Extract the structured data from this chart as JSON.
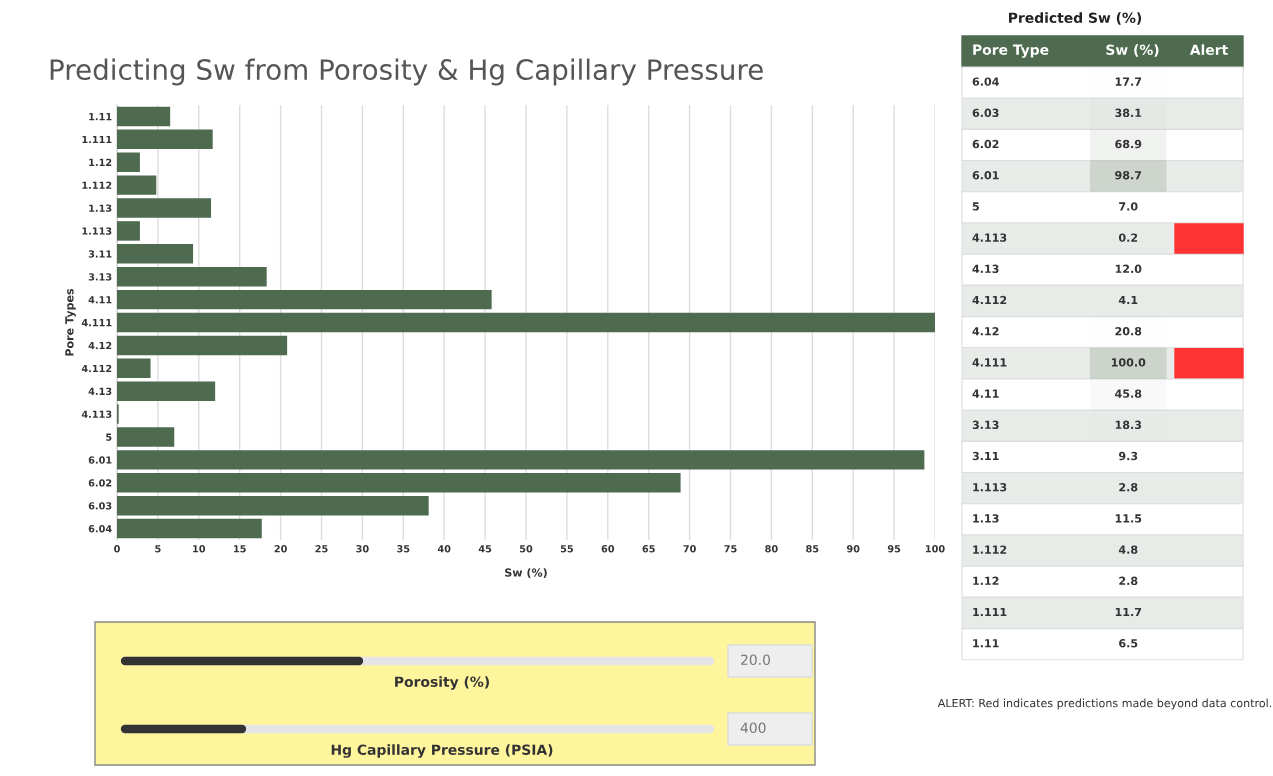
{
  "chart_data": [
    {
      "type": "bar",
      "orientation": "horizontal",
      "title": "Predicting Sw from Porosity & Hg Capillary Pressure",
      "xlabel": "Sw (%)",
      "ylabel": "Pore Types",
      "categories": [
        "1.11",
        "1.111",
        "1.12",
        "1.112",
        "1.13",
        "1.113",
        "3.11",
        "3.13",
        "4.11",
        "4.111",
        "4.12",
        "4.112",
        "4.13",
        "4.113",
        "5",
        "6.01",
        "6.02",
        "6.03",
        "6.04"
      ],
      "values": [
        6.5,
        11.7,
        2.8,
        4.8,
        11.5,
        2.8,
        9.3,
        18.3,
        45.8,
        100.0,
        20.8,
        4.1,
        12.0,
        0.2,
        7.0,
        98.7,
        68.9,
        38.1,
        17.7
      ],
      "color": "#4e6b50",
      "xlim": [
        0,
        100
      ],
      "xticks": [
        0,
        5,
        10,
        15,
        20,
        25,
        30,
        35,
        40,
        45,
        50,
        55,
        60,
        65,
        70,
        75,
        80,
        85,
        90,
        95,
        100
      ],
      "grid": "x"
    },
    {
      "type": "heatmap",
      "title": "Predicted Sw (%)",
      "categories": [
        "Sw (%)",
        "Alert"
      ],
      "y_categories": [
        "6.04",
        "6.03",
        "6.02",
        "6.01",
        "5",
        "4.113",
        "4.13",
        "4.112",
        "4.12",
        "4.111",
        "4.11",
        "3.13",
        "3.11",
        "1.113",
        "1.13",
        "1.112",
        "1.12",
        "1.111",
        "1.11"
      ],
      "cells": [
        [
          17.7,
          null
        ],
        [
          38.1,
          null
        ],
        [
          68.9,
          null
        ],
        [
          98.7,
          null
        ],
        [
          7.0,
          null
        ],
        [
          0.2,
          null
        ],
        [
          12.0,
          null
        ],
        [
          4.1,
          null
        ],
        [
          20.8,
          null
        ],
        [
          100.0,
          null
        ],
        [
          45.8,
          null
        ],
        [
          18.3,
          null
        ],
        [
          9.3,
          null
        ],
        [
          2.8,
          null
        ],
        [
          11.5,
          null
        ],
        [
          4.8,
          null
        ],
        [
          2.8,
          null
        ],
        [
          11.7,
          null
        ],
        [
          6.5,
          null
        ]
      ],
      "cell_labels": [
        [
          "17.7",
          null
        ],
        [
          "38.1",
          null
        ],
        [
          "68.9",
          null
        ],
        [
          "98.7",
          null
        ],
        [
          "7.0",
          null
        ],
        [
          "0.2",
          null
        ],
        [
          "12.0",
          null
        ],
        [
          "4.1",
          null
        ],
        [
          "20.8",
          null
        ],
        [
          "100.0",
          null
        ],
        [
          "45.8",
          null
        ],
        [
          "18.3",
          null
        ],
        [
          "9.3",
          null
        ],
        [
          "2.8",
          null
        ],
        [
          "11.5",
          null
        ],
        [
          "4.8",
          null
        ],
        [
          "2.8",
          null
        ],
        [
          "11.7",
          null
        ],
        [
          "6.5",
          null
        ]
      ],
      "colors": [
        null,
        null,
        null,
        null,
        null,
        "#ff3333",
        null,
        null,
        null,
        "#ff3333",
        null,
        null,
        null,
        null,
        null,
        null,
        null,
        null,
        null
      ],
      "color": "#4e6b50",
      "annotations": [
        "Pore Type",
        "ALERT: Red indicates predictions made beyond data control."
      ]
    },
    {
      "type": "other",
      "categories": [
        "Porosity (%)",
        "Hg Capillary Pressure (PSIA)"
      ],
      "values": [
        20.0,
        400
      ],
      "value_labels": [
        "20.0",
        "400"
      ]
    }
  ]
}
